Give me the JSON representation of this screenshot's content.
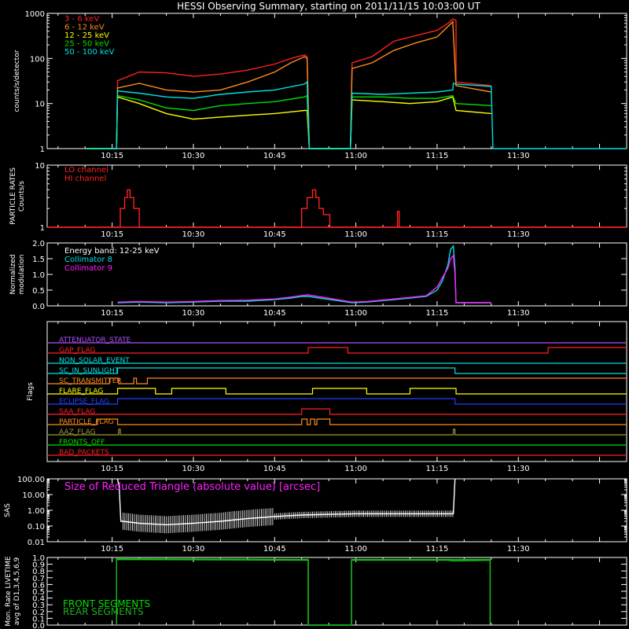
{
  "title": "HESSI Observing Summary, starting on 2011/11/15 10:03:00 UT",
  "time_ticks": [
    "10:15",
    "10:30",
    "10:45",
    "11:00",
    "11:15",
    "11:30"
  ],
  "time_tick_minutes": [
    15,
    30,
    45,
    60,
    75,
    90
  ],
  "time_range_minutes_after_10h": [
    3,
    110
  ],
  "colors": {
    "bg": "#000000",
    "axis": "#ffffff",
    "red": "#ff2020",
    "orange": "#ff8c1a",
    "yellow": "#ffff00",
    "green": "#00e000",
    "cyan": "#00e0e0",
    "magenta": "#ff20ff",
    "blue": "#2040ff",
    "purple": "#b050ff",
    "olive": "#9a9a3a",
    "dkgreen": "#20b020"
  },
  "chart_data": [
    {
      "type": "line",
      "panel": "count_rates",
      "ylabel": "counts/s/detector",
      "yscale": "log",
      "ylim": [
        1,
        1000
      ],
      "ytick_labels": [
        "1",
        "10",
        "100",
        "1000"
      ],
      "ytick_values": [
        1,
        10,
        100,
        1000
      ],
      "series": [
        {
          "name": "3 - 6 keV",
          "color": "red",
          "x": [
            10.3,
            10.3,
            15.8,
            16,
            20,
            25,
            30,
            35,
            40,
            45,
            48,
            50.5,
            51,
            51.4,
            59,
            59.3,
            60,
            63,
            67,
            71,
            75,
            77,
            77.9,
            78.5,
            78.5,
            85
          ],
          "y": [
            1,
            1,
            1,
            32,
            50,
            48,
            40,
            45,
            55,
            75,
            100,
            120,
            110,
            1,
            1,
            80,
            85,
            110,
            240,
            320,
            420,
            600,
            750,
            700,
            30,
            25
          ]
        },
        {
          "name": "6 - 12 keV",
          "color": "orange",
          "x": [
            10.3,
            15.8,
            16,
            20,
            25,
            30,
            35,
            40,
            45,
            48,
            50.5,
            51,
            51.4,
            59,
            59.3,
            63,
            67,
            71,
            75,
            77.9,
            78.5,
            85
          ],
          "y": [
            1,
            1,
            22,
            28,
            20,
            18,
            20,
            30,
            50,
            80,
            110,
            100,
            1,
            1,
            60,
            80,
            150,
            220,
            300,
            650,
            25,
            18
          ]
        },
        {
          "name": "12 - 25 keV",
          "color": "yellow",
          "x": [
            10.3,
            15.8,
            16,
            20,
            25,
            30,
            35,
            40,
            45,
            50.5,
            51,
            51.4,
            59,
            59.3,
            65,
            70,
            75,
            77.9,
            78.5,
            85
          ],
          "y": [
            1,
            1,
            14,
            10,
            6,
            4.5,
            5,
            5.5,
            6,
            7,
            7,
            1,
            1,
            12,
            11,
            10,
            11,
            14,
            7,
            6
          ]
        },
        {
          "name": "25 - 50 keV",
          "color": "green",
          "x": [
            10.3,
            15.8,
            16,
            20,
            25,
            30,
            35,
            40,
            45,
            50.5,
            51,
            51.4,
            59,
            59.3,
            65,
            70,
            75,
            77.9,
            78.5,
            85
          ],
          "y": [
            1,
            1,
            15,
            12,
            8,
            7,
            9,
            10,
            11,
            14,
            15,
            1,
            1,
            14,
            14,
            13,
            13,
            15,
            10,
            9
          ]
        },
        {
          "name": "50 - 100 keV",
          "color": "cyan",
          "x": [
            10.3,
            15.8,
            16,
            20,
            25,
            30,
            35,
            40,
            45,
            50.5,
            51,
            51.4,
            59,
            59.3,
            65,
            70,
            75,
            77.9,
            78,
            78.5,
            85,
            85.3,
            110
          ],
          "y": [
            1,
            1,
            19,
            17,
            14,
            13,
            16,
            18,
            20,
            27,
            30,
            1,
            1,
            17,
            16,
            17,
            18,
            20,
            28,
            27,
            24,
            1,
            1
          ]
        }
      ]
    },
    {
      "type": "line",
      "panel": "particle_rates",
      "ylabel": "PARTICLE RATES Counts/s",
      "yscale": "log",
      "ylim": [
        1,
        10
      ],
      "ytick_labels": [
        "1",
        "10"
      ],
      "ytick_values": [
        1,
        10
      ],
      "series": [
        {
          "name": "LO channel",
          "color": "red",
          "x": [
            3,
            16.5,
            16.5,
            17.3,
            17.3,
            17.8,
            17.8,
            18.3,
            18.3,
            19,
            19,
            20,
            20,
            50,
            50,
            51,
            51,
            52,
            52,
            52.6,
            52.6,
            53.2,
            53.2,
            54,
            54,
            55.2,
            55.2,
            67.7,
            67.7,
            68,
            68,
            110
          ],
          "y": [
            1,
            1,
            2,
            2,
            3,
            3,
            4,
            4,
            3,
            3,
            2,
            2,
            1,
            1,
            2,
            2,
            3,
            3,
            4,
            4,
            3,
            3,
            2,
            2,
            1.6,
            1.6,
            1,
            1,
            1.8,
            1.8,
            1,
            1
          ]
        },
        {
          "name": "HI channel",
          "color": "red",
          "x": [
            3,
            110
          ],
          "y": [
            1,
            1
          ]
        }
      ]
    },
    {
      "type": "line",
      "panel": "modulation",
      "ylabel": "Normalized modulation",
      "ylim": [
        0,
        2
      ],
      "ytick_labels": [
        "0.0",
        "0.5",
        "1.0",
        "1.5",
        "2.0"
      ],
      "ytick_values": [
        0,
        0.5,
        1.0,
        1.5,
        2.0
      ],
      "annotation": "Energy band: 12-25 keV",
      "series": [
        {
          "name": "Collimator 8",
          "color": "cyan",
          "x": [
            16,
            20,
            25,
            30,
            35,
            40,
            45,
            48,
            50,
            51.2,
            59.3,
            62,
            66,
            70,
            73,
            75,
            76,
            77,
            77.5,
            78,
            78.3,
            78.5,
            85
          ],
          "y": [
            0.1,
            0.12,
            0.1,
            0.12,
            0.15,
            0.15,
            0.2,
            0.25,
            0.3,
            0.3,
            0.1,
            0.12,
            0.18,
            0.25,
            0.3,
            0.5,
            0.8,
            1.3,
            1.8,
            1.9,
            1.2,
            0.1,
            0.1
          ]
        },
        {
          "name": "Collimator 9",
          "color": "magenta",
          "x": [
            16,
            20,
            25,
            30,
            35,
            40,
            45,
            48,
            50,
            51.2,
            59.3,
            62,
            66,
            70,
            73,
            75,
            76,
            77,
            77.5,
            78,
            78.3,
            78.5,
            85
          ],
          "y": [
            0.12,
            0.14,
            0.12,
            0.14,
            0.17,
            0.18,
            0.22,
            0.28,
            0.33,
            0.35,
            0.12,
            0.14,
            0.2,
            0.27,
            0.32,
            0.6,
            0.9,
            1.2,
            1.5,
            1.6,
            1.0,
            0.1,
            0.1
          ]
        }
      ]
    },
    {
      "type": "line",
      "panel": "flags",
      "ylabel": "Flags",
      "flags": [
        {
          "name": "ATTENUATOR_STATE",
          "color": "purple",
          "transitions": []
        },
        {
          "name": "GAP_FLAG",
          "color": "red",
          "transitions": [
            51.2,
            58.5,
            95.5
          ]
        },
        {
          "name": "NON_SOLAR_EVENT",
          "color": "cyan",
          "transitions": []
        },
        {
          "name": "SC_IN_SUNLIGHT",
          "color": "cyan",
          "transitions": [
            16,
            78.3
          ]
        },
        {
          "name": "SC_TRANSMITTER",
          "color": "orange",
          "transitions": [
            14.5,
            16.2,
            19,
            19.5,
            21.5
          ]
        },
        {
          "name": "FLARE_FLAG",
          "color": "yellow",
          "transitions": [
            16,
            23,
            26,
            36,
            52,
            62,
            70,
            78.5
          ]
        },
        {
          "name": "ECLIPSE_FLAG",
          "color": "blue",
          "transitions": [
            16,
            78.3
          ]
        },
        {
          "name": "SAA_FLAG",
          "color": "red",
          "transitions": [
            50,
            55.2
          ]
        },
        {
          "name": "PARTICLE_FLAG",
          "color": "orange",
          "transitions": [
            12.3,
            16,
            50,
            51,
            51.6,
            52.4,
            52.8,
            55.2
          ]
        },
        {
          "name": "AAZ_FLAG",
          "color": "olive",
          "transitions": [
            16.2,
            16.5,
            78,
            78.3
          ]
        },
        {
          "name": "FRONTS_OFF",
          "color": "green",
          "transitions": []
        },
        {
          "name": "BAD_PACKETS",
          "color": "red",
          "transitions": []
        }
      ]
    },
    {
      "type": "line",
      "panel": "sas",
      "ylabel": "SAS",
      "yscale": "log",
      "ylim": [
        0.01,
        100
      ],
      "ytick_labels": [
        "0.01",
        "0.10",
        "1.00",
        "10.00",
        "100.00"
      ],
      "ytick_values": [
        0.01,
        0.1,
        1,
        10,
        100
      ],
      "annotation": "Size of Reduced Triangle (absolute value) [arcsec]",
      "series": [
        {
          "name": "",
          "color": "axis",
          "x": [
            16,
            16.3,
            16.6,
            17,
            20,
            25,
            30,
            35,
            40,
            45,
            50,
            55,
            60,
            65,
            70,
            75,
            77.5,
            78,
            78.3
          ],
          "y": [
            100,
            30,
            0.2,
            0.2,
            0.15,
            0.12,
            0.15,
            0.2,
            0.3,
            0.4,
            0.5,
            0.55,
            0.6,
            0.6,
            0.6,
            0.6,
            0.6,
            0.6,
            100
          ]
        }
      ]
    },
    {
      "type": "line",
      "panel": "livetime",
      "ylabel": "Mon. Rate LIVETIME avg of D1,3,4,5,6,9",
      "ylim": [
        0,
        1
      ],
      "ytick_labels": [
        "0.0",
        "0.1",
        "0.2",
        "0.3",
        "0.4",
        "0.5",
        "0.6",
        "0.7",
        "0.8",
        "0.9",
        "1.0"
      ],
      "ytick_values": [
        0,
        0.1,
        0.2,
        0.3,
        0.4,
        0.5,
        0.6,
        0.7,
        0.8,
        0.9,
        1.0
      ],
      "series": [
        {
          "name": "FRONT SEGMENTS",
          "color": "green",
          "x": [
            15.8,
            15.8,
            51.2,
            51.2,
            59.2,
            59.2,
            77,
            78,
            84.8,
            84.8
          ],
          "y": [
            0,
            0.97,
            0.96,
            0,
            0,
            0.96,
            0.96,
            0.95,
            0.96,
            0
          ]
        },
        {
          "name": "REAR SEGMENTS",
          "color": "dkgreen",
          "x": [
            15.8,
            15.8,
            51.2,
            51.2,
            59.2,
            59.2,
            84.8,
            84.8
          ],
          "y": [
            0,
            0.98,
            0.97,
            0,
            0,
            0.97,
            0.97,
            0
          ]
        }
      ]
    }
  ]
}
